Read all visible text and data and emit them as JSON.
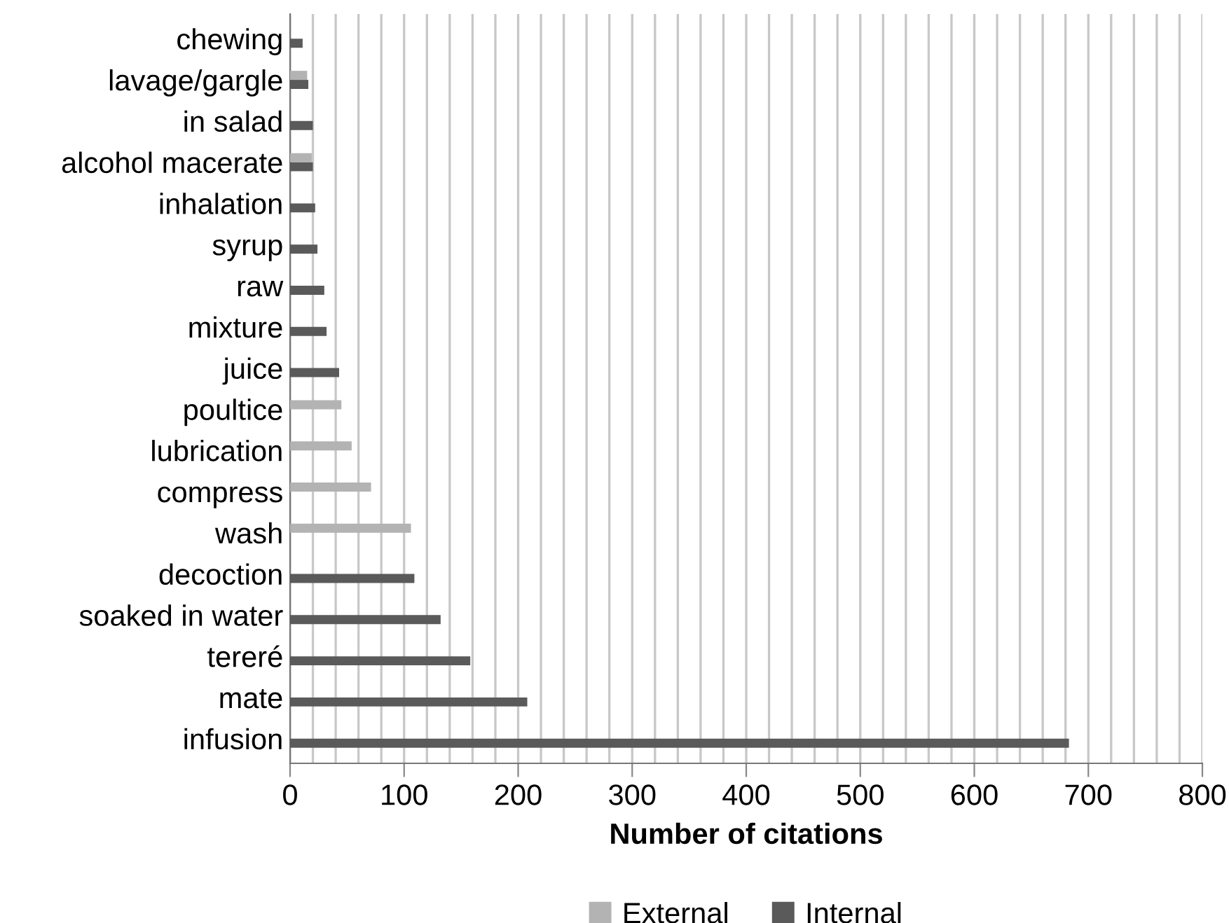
{
  "chart_data": {
    "type": "bar",
    "orientation": "horizontal",
    "xlabel": "Number of citations",
    "categories": [
      "chewing",
      "lavage/gargle",
      "in salad",
      "alcohol macerate",
      "inhalation",
      "syrup",
      "raw",
      "mixture",
      "juice",
      "poultice",
      "lubrication",
      "compress",
      "wash",
      "decoction",
      "soaked in water",
      "tereré",
      "mate",
      "infusion"
    ],
    "series": [
      {
        "name": "External",
        "color": "#b3b3b3",
        "values": [
          null,
          15,
          null,
          19,
          null,
          null,
          null,
          null,
          null,
          45,
          54,
          71,
          106,
          null,
          null,
          null,
          null,
          null
        ]
      },
      {
        "name": "Internal",
        "color": "#5a5a5a",
        "values": [
          11,
          16,
          20,
          20,
          22,
          24,
          30,
          32,
          43,
          null,
          null,
          null,
          null,
          109,
          132,
          158,
          208,
          683
        ]
      }
    ],
    "xlim": [
      0,
      800
    ],
    "xticks": [
      0,
      {
        "value": 20,
        "label": null
      },
      {
        "value": 40,
        "label": null
      },
      {
        "value": 60,
        "label": null
      },
      {
        "value": 80,
        "label": null
      },
      100,
      {
        "value": 120,
        "label": null
      },
      {
        "value": 140,
        "label": null
      },
      {
        "value": 160,
        "label": null
      },
      {
        "value": 180,
        "label": null
      },
      200,
      {
        "value": 220,
        "label": null
      },
      {
        "value": 240,
        "label": null
      },
      {
        "value": 260,
        "label": null
      },
      {
        "value": 280,
        "label": null
      },
      300,
      {
        "value": 320,
        "label": null
      },
      {
        "value": 340,
        "label": null
      },
      {
        "value": 360,
        "label": null
      },
      {
        "value": 380,
        "label": null
      },
      400,
      {
        "value": 420,
        "label": null
      },
      {
        "value": 440,
        "label": null
      },
      {
        "value": 460,
        "label": null
      },
      {
        "value": 480,
        "label": null
      },
      500,
      {
        "value": 520,
        "label": null
      },
      {
        "value": 540,
        "label": null
      },
      {
        "value": 560,
        "label": null
      },
      {
        "value": 580,
        "label": null
      },
      600,
      {
        "value": 620,
        "label": null
      },
      {
        "value": 640,
        "label": null
      },
      {
        "value": 660,
        "label": null
      },
      {
        "value": 680,
        "label": null
      },
      700,
      {
        "value": 720,
        "label": null
      },
      {
        "value": 740,
        "label": null
      },
      {
        "value": 760,
        "label": null
      },
      {
        "value": 780,
        "label": null
      },
      800
    ],
    "grid": "x",
    "legend": "bottom"
  }
}
